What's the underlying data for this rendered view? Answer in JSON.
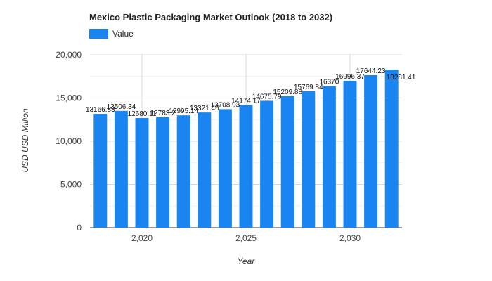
{
  "chart_data": {
    "type": "bar",
    "title": "Mexico Plastic Packaging Market Outlook (2018 to 2032)",
    "xlabel": "Year",
    "ylabel": "USD USD Million",
    "legend": {
      "placement": "top-left",
      "entries": [
        "Value"
      ]
    },
    "series": [
      {
        "name": "Value",
        "color": "#1a84f0",
        "x": [
          2018,
          2019,
          2020,
          2021,
          2022,
          2023,
          2024,
          2025,
          2026,
          2027,
          2028,
          2029,
          2030,
          2031,
          2032
        ],
        "values": [
          13166.83,
          13506.34,
          12680.11,
          12783.2,
          12995.14,
          13321.46,
          13708.93,
          14174.17,
          14675.79,
          15209.88,
          15769.84,
          16370,
          16996.37,
          17644.23,
          18281.41
        ],
        "labels": [
          "13166.83",
          "13506.34",
          "12680.11",
          "12783.2",
          "12995.14",
          "13321.46",
          "13708.93",
          "14174.17",
          "14675.79",
          "15209.88",
          "15769.84",
          "16370",
          "16996.37",
          "17644.23",
          "18281.41"
        ]
      }
    ],
    "ylim": [
      0,
      20000
    ],
    "yticks": [
      0,
      5000,
      10000,
      15000,
      20000
    ],
    "ytick_labels": [
      "0",
      "5,000",
      "10,000",
      "15,000",
      "20,000"
    ],
    "xlim": [
      2017.5,
      2032.5
    ],
    "xticks": [
      2020,
      2025,
      2030
    ],
    "xtick_labels": [
      "2,020",
      "2,025",
      "2,030"
    ],
    "grid": true
  }
}
